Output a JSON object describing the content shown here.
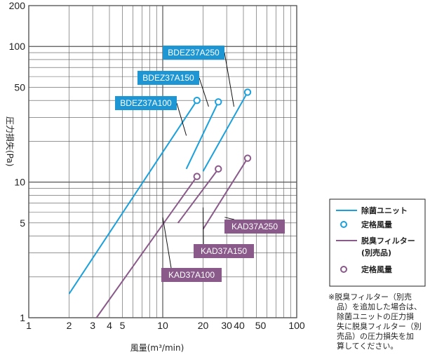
{
  "colors": {
    "sterilization": "#1aa0dc",
    "deodorizing": "#8a5a8a",
    "callout_blue": "#1e96d3",
    "callout_purple": "#8a5a8a",
    "grid": "#555555"
  },
  "chart_data": {
    "type": "line",
    "xscale": "log",
    "yscale": "log",
    "xlim": [
      1,
      100
    ],
    "ylim": [
      1,
      200
    ],
    "xlabel": "風量(m³/min)",
    "ylabel": "圧力損失(Pa)",
    "x_ticks": [
      "1",
      "2",
      "3",
      "4",
      "5",
      "10",
      "20",
      "30",
      "40",
      "50",
      "100"
    ],
    "y_ticks": [
      "1",
      "5",
      "10",
      "50",
      "100",
      "200"
    ],
    "grid": true,
    "series": [
      {
        "name": "BDEZ37A100",
        "group": "sterilization",
        "points": [
          [
            2,
            1.5
          ],
          [
            18,
            40
          ]
        ],
        "rated": [
          18,
          40
        ]
      },
      {
        "name": "BDEZ37A150",
        "group": "sterilization",
        "points": [
          [
            15,
            12.5
          ],
          [
            26,
            39
          ]
        ],
        "rated": [
          26,
          39
        ]
      },
      {
        "name": "BDEZ37A250",
        "group": "sterilization",
        "points": [
          [
            20,
            12
          ],
          [
            43,
            46
          ]
        ],
        "rated": [
          43,
          46
        ]
      },
      {
        "name": "KAD37A100",
        "group": "deodorizing",
        "points": [
          [
            3.2,
            1
          ],
          [
            18,
            11
          ]
        ],
        "rated": [
          18,
          11
        ]
      },
      {
        "name": "KAD37A150",
        "group": "deodorizing",
        "points": [
          [
            13,
            5
          ],
          [
            26,
            12.5
          ]
        ],
        "rated": [
          26,
          12.5
        ]
      },
      {
        "name": "KAD37A250",
        "group": "deodorizing",
        "points": [
          [
            20,
            4.5
          ],
          [
            43,
            15
          ]
        ],
        "rated": [
          43,
          15
        ]
      }
    ]
  },
  "legend": {
    "sterilization_line": "除菌ユニット",
    "sterilization_rated": "定格風量",
    "deodorizing_line": "脱臭フィルター",
    "deodorizing_line_sub": "(別売品)",
    "deodorizing_rated": "定格風量"
  },
  "note": {
    "lines": [
      "※脱臭フィルター（別売",
      "品）を追加した場合は、",
      "除菌ユニットの圧力損",
      "失に脱臭フィルター（別",
      "売品）の圧力損失を加",
      "算してください。"
    ]
  }
}
